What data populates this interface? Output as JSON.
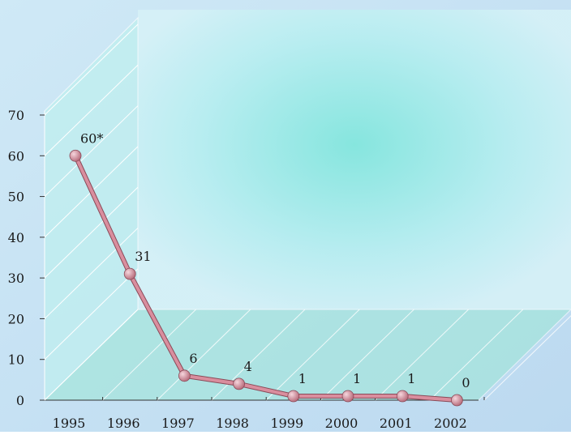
{
  "chart_data": {
    "type": "line",
    "categories": [
      "1995",
      "1996",
      "1997",
      "1998",
      "1999",
      "2000",
      "2001",
      "2002"
    ],
    "values": [
      60,
      31,
      6,
      4,
      1,
      1,
      1,
      0
    ],
    "value_labels": [
      "60*",
      "31",
      "6",
      "4",
      "1",
      "1",
      "1",
      "0"
    ],
    "color": "#d98e9e",
    "ylim": [
      0,
      70
    ],
    "yticks": [
      0,
      10,
      20,
      30,
      40,
      50,
      60,
      70
    ],
    "grid": true
  }
}
